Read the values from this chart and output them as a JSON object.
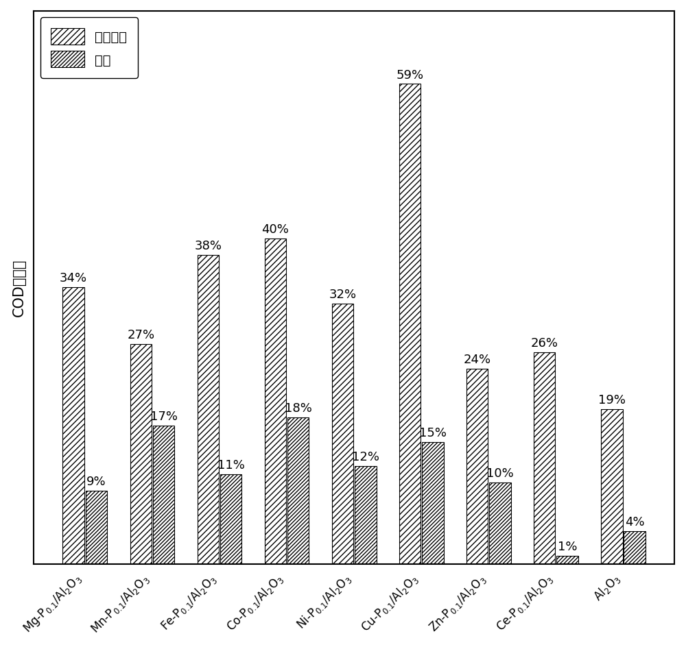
{
  "categories_latex": [
    "Mg-P$_{0.1}$/Al$_2$O$_3$",
    "Mn-P$_{0.1}$/Al$_2$O$_3$",
    "Fe-P$_{0.1}$/Al$_2$O$_3$",
    "Co-P$_{0.1}$/Al$_2$O$_3$",
    "Ni-P$_{0.1}$/Al$_2$O$_3$",
    "Cu-P$_{0.1}$/Al$_2$O$_3$",
    "Zn-P$_{0.1}$/Al$_2$O$_3$",
    "Ce-P$_{0.1}$/Al$_2$O$_3$",
    "Al$_2$O$_3$"
  ],
  "ozone_values": [
    34,
    27,
    38,
    40,
    32,
    59,
    24,
    26,
    19
  ],
  "adsorption_values": [
    9,
    17,
    11,
    18,
    12,
    15,
    10,
    1,
    4
  ],
  "ylabel": "COD去除率",
  "legend_ozone": "臭氧氧化",
  "legend_adsorption": "吸附",
  "bar_width": 0.32,
  "ylim": [
    0,
    68
  ],
  "hatch_ozone": "////",
  "hatch_adsorption": "////",
  "face_color": "#ffffff",
  "edge_color": "#000000",
  "font_size_label": 15,
  "font_size_tick": 12,
  "font_size_annot": 13,
  "font_size_legend": 14,
  "figsize": [
    10.0,
    9.45
  ],
  "dpi": 100
}
